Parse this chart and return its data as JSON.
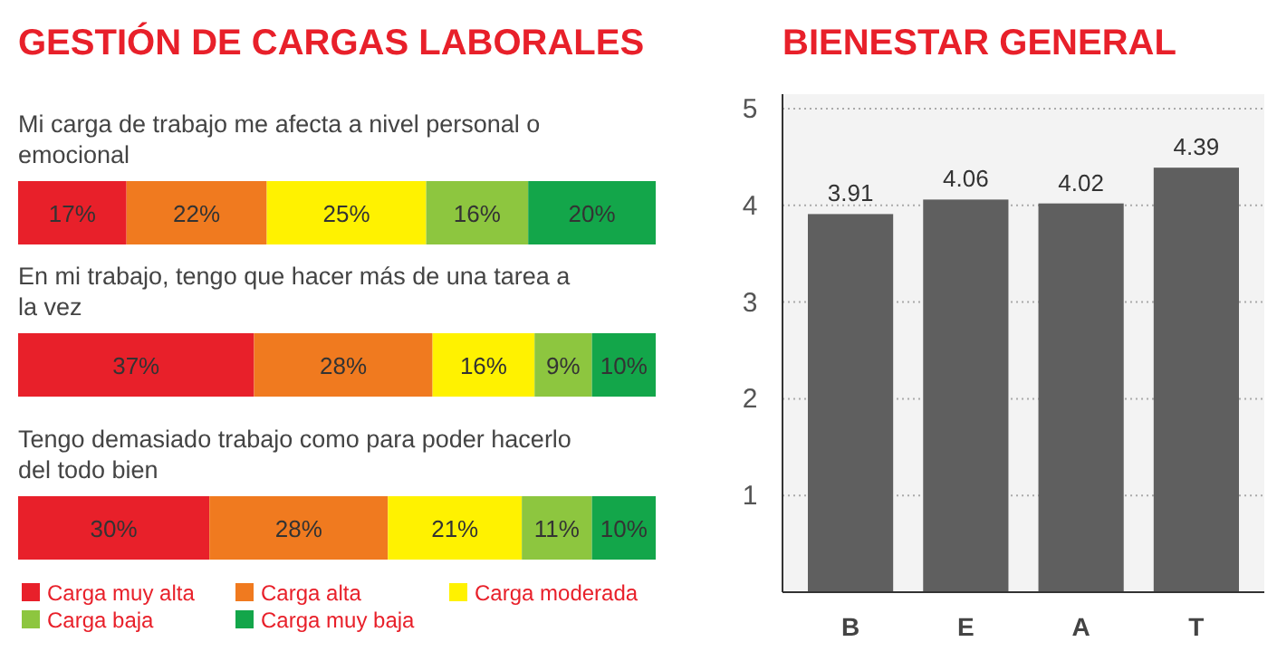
{
  "chart_data": [
    {
      "type": "bar",
      "title": "GESTIÓN DE CARGAS LABORALES",
      "orientation": "horizontal",
      "stacked": true,
      "categories": [
        "Mi carga de trabajo me afecta a nivel personal o emocional",
        "En mi trabajo, tengo que hacer más de una tarea a la vez",
        "Tengo demasiado trabajo como para poder hacerlo del todo bien"
      ],
      "xlim": [
        0,
        100
      ],
      "legend": "bottom",
      "series": [
        {
          "name": "Carga muy alta",
          "color": "#e8202a",
          "values": [
            17,
            37,
            30
          ],
          "value_labels": [
            "17%",
            "37%",
            "30%"
          ]
        },
        {
          "name": "Carga alta",
          "color": "#f07a1f",
          "values": [
            22,
            28,
            28
          ],
          "value_labels": [
            "22%",
            "28%",
            "28%"
          ]
        },
        {
          "name": "Carga moderada",
          "color": "#fff200",
          "values": [
            25,
            16,
            21
          ],
          "value_labels": [
            "25%",
            "16%",
            "21%"
          ]
        },
        {
          "name": "Carga baja",
          "color": "#8dc63f",
          "values": [
            16,
            9,
            11
          ],
          "value_labels": [
            "16%",
            "9%",
            "11%"
          ]
        },
        {
          "name": "Carga muy baja",
          "color": "#13a64a",
          "values": [
            20,
            10,
            10
          ],
          "value_labels": [
            "20%",
            "10%",
            "10%"
          ]
        }
      ]
    },
    {
      "type": "bar",
      "title": "BIENESTAR GENERAL",
      "categories": [
        "B",
        "E",
        "A",
        "T"
      ],
      "values": [
        3.91,
        4.06,
        4.02,
        4.39
      ],
      "color": "#5f5f5f",
      "ylim": [
        0,
        5
      ],
      "yticks": [
        1,
        2,
        3,
        4,
        5
      ],
      "grid": "y",
      "data_labels": true
    }
  ]
}
